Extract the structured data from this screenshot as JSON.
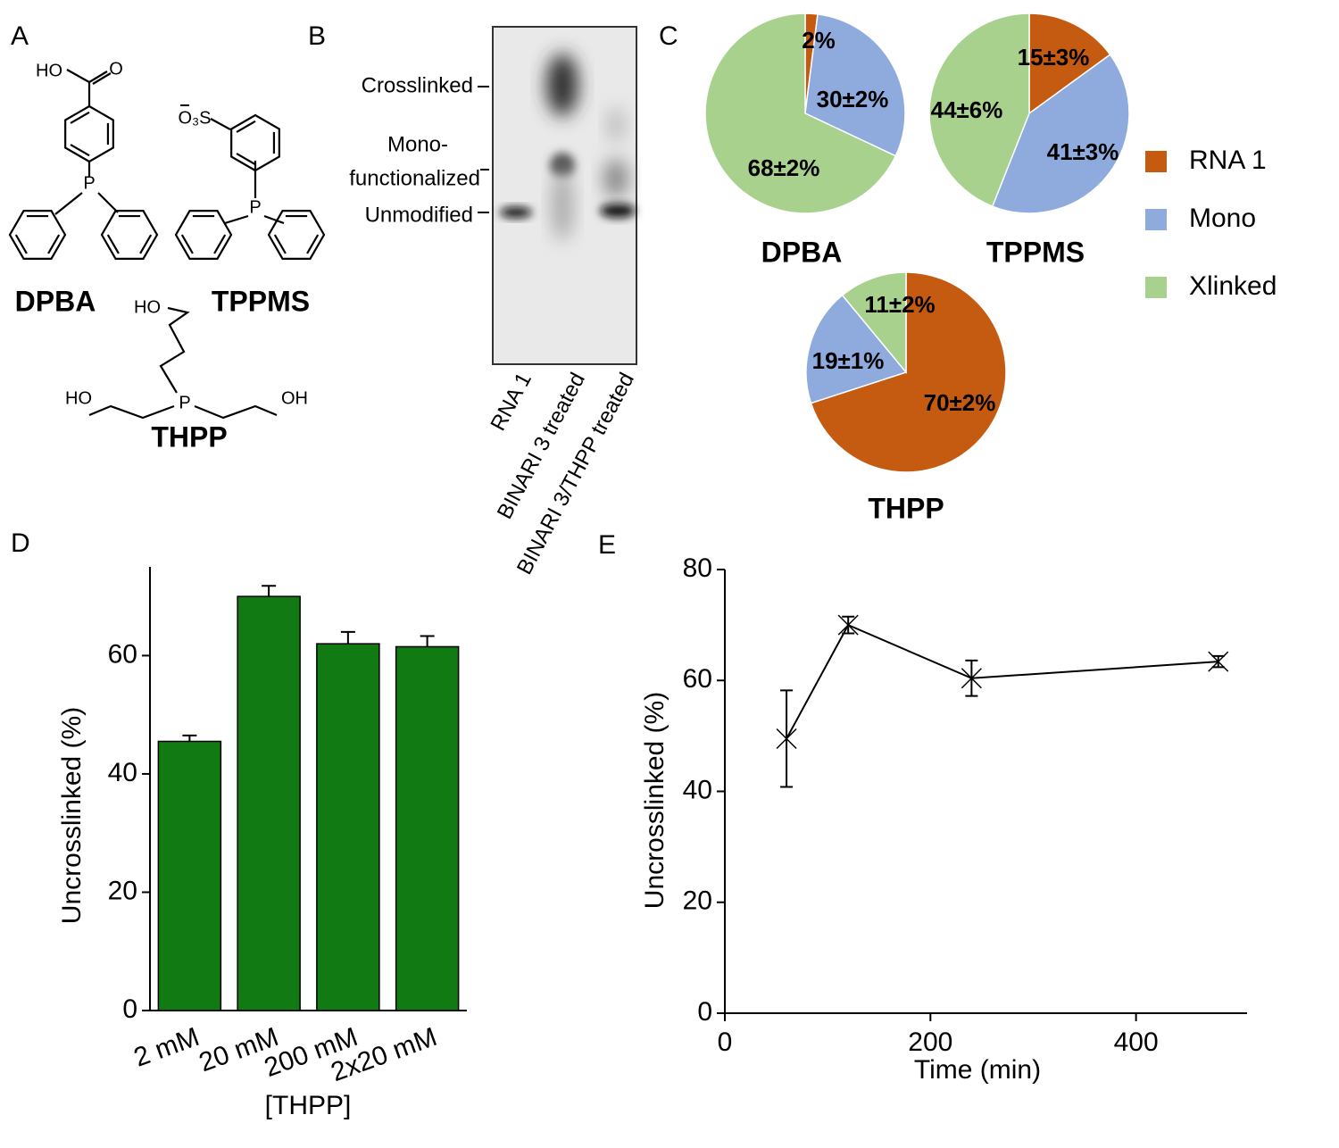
{
  "panel_labels": [
    "A",
    "B",
    "C",
    "D",
    "E"
  ],
  "structures": [
    {
      "name": "DPBA",
      "atoms": [
        "HO",
        "O",
        "P"
      ]
    },
    {
      "name": "TPPMS",
      "atoms": [
        "O₃S",
        "P"
      ]
    },
    {
      "name": "THPP",
      "atoms": [
        "HO",
        "HO",
        "P",
        "OH"
      ]
    }
  ],
  "gel": {
    "band_labels": [
      "Crosslinked",
      [
        "Mono-",
        "functionalized"
      ],
      "Unmodified"
    ],
    "lanes": [
      "RNA 1",
      "BINARI 3 treated",
      "BINARI 3/THPP treated"
    ]
  },
  "chart_data": [
    {
      "type": "pie",
      "title": "DPBA",
      "categories": [
        "RNA 1",
        "Mono",
        "Xlinked"
      ],
      "colors": [
        "#c55a11",
        "#8faadc",
        "#a9d18e"
      ],
      "values": [
        2,
        30,
        68
      ],
      "value_labels": [
        "2%",
        "30±2%",
        "68±2%"
      ]
    },
    {
      "type": "pie",
      "title": "TPPMS",
      "colors": [
        "#c55a11",
        "#8faadc",
        "#a9d18e"
      ],
      "values": [
        15,
        41,
        44
      ],
      "value_labels": [
        "15±3%",
        "41±3%",
        "44±6%"
      ]
    },
    {
      "type": "pie",
      "title": "THPP",
      "colors": [
        "#c55a11",
        "#8faadc",
        "#a9d18e"
      ],
      "values": [
        70,
        19,
        11
      ],
      "value_labels": [
        "70±2%",
        "19±1%",
        "11±2%"
      ]
    },
    {
      "type": "bar",
      "x_label": "[THPP]",
      "y_label": "Uncrosslinked (%)",
      "categories": [
        "2 mM",
        "20 mM",
        "200 mM",
        "2x20 mM"
      ],
      "values": [
        45.5,
        70,
        62,
        61.5
      ],
      "errors": [
        1,
        1.8,
        2,
        1.8
      ],
      "color": "#127a12",
      "ylim": [
        0,
        75
      ],
      "yticks": [
        0,
        20,
        40,
        60
      ]
    },
    {
      "type": "line",
      "x_label": "Time (min)",
      "y_label": "Uncrosslinked (%)",
      "x": [
        60,
        120,
        240,
        480
      ],
      "values": [
        49.5,
        70,
        60.4,
        63.4
      ],
      "errors": [
        8.7,
        1.5,
        3.2,
        1
      ],
      "color": "#000000",
      "xlim": [
        0,
        508
      ],
      "ylim": [
        0,
        80
      ],
      "xticks": [
        0,
        200,
        400
      ],
      "yticks": [
        0,
        20,
        40,
        60,
        80
      ]
    }
  ]
}
